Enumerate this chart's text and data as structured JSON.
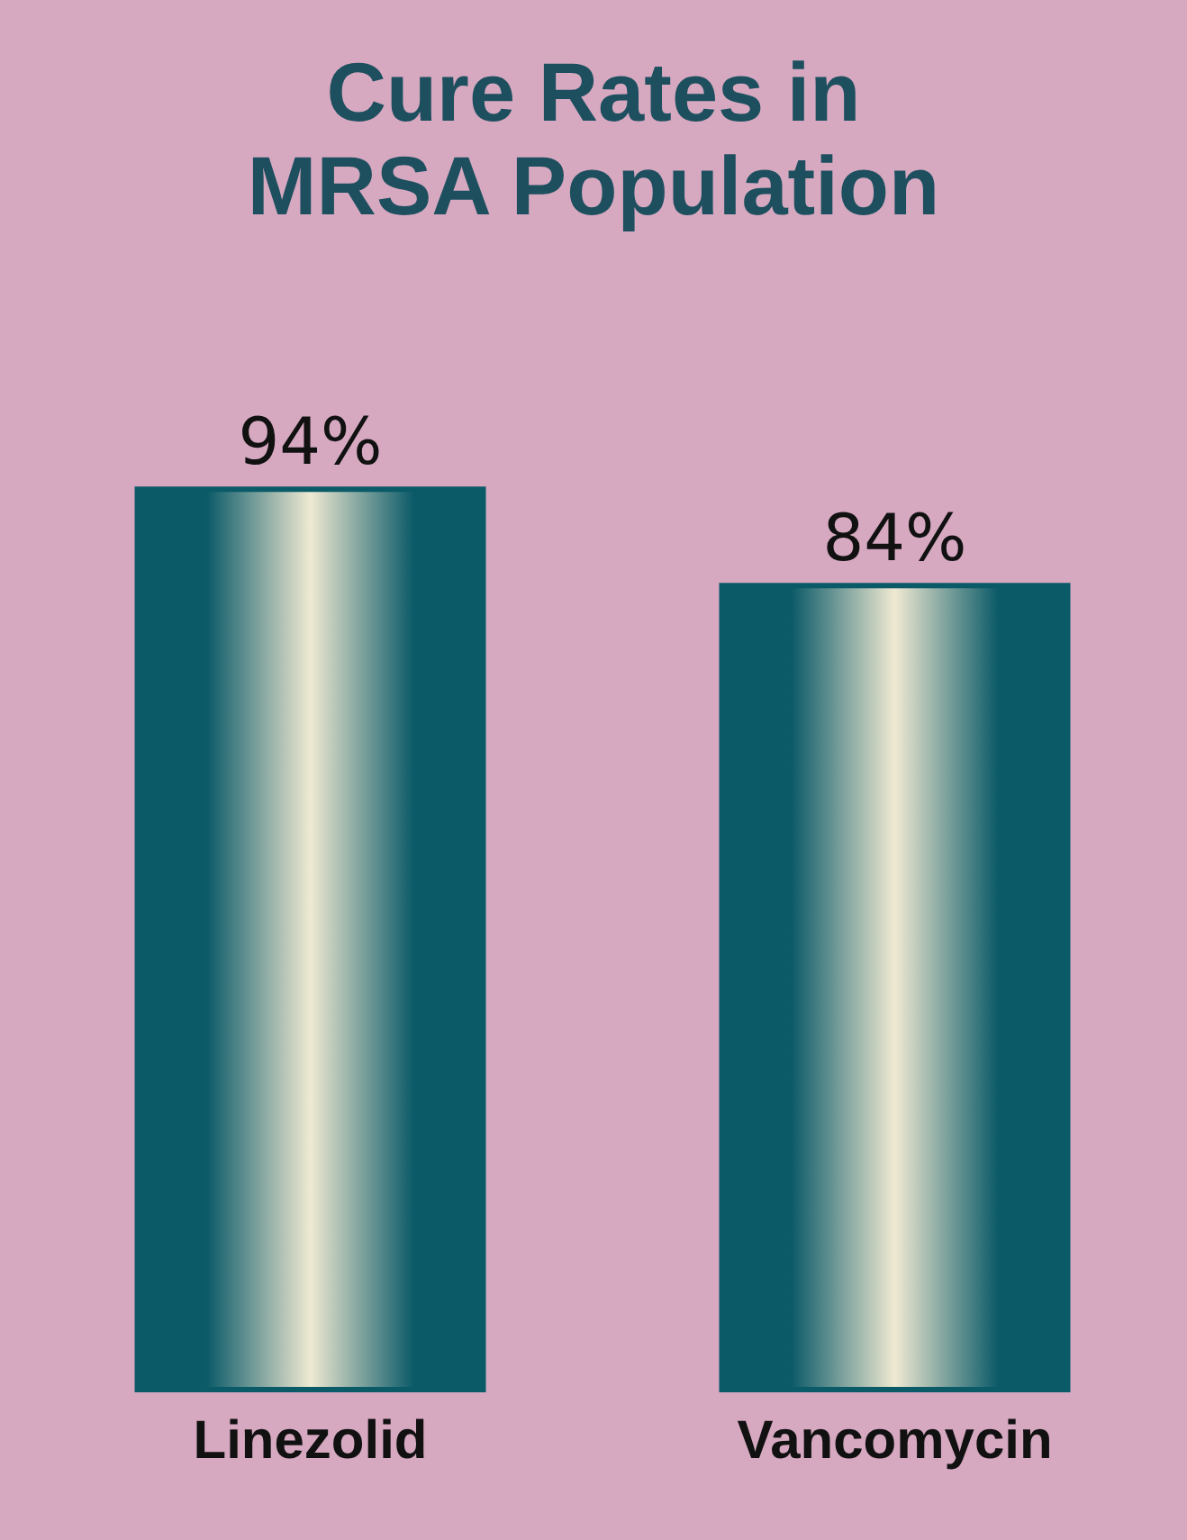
{
  "chart_data": {
    "type": "bar",
    "title": "Cure Rates in\nMRSA Population",
    "categories": [
      "Linezolid",
      "Vancomycin"
    ],
    "values": [
      94,
      84
    ],
    "value_labels": [
      "94%",
      "84%"
    ],
    "color": "#0b5a68"
  }
}
